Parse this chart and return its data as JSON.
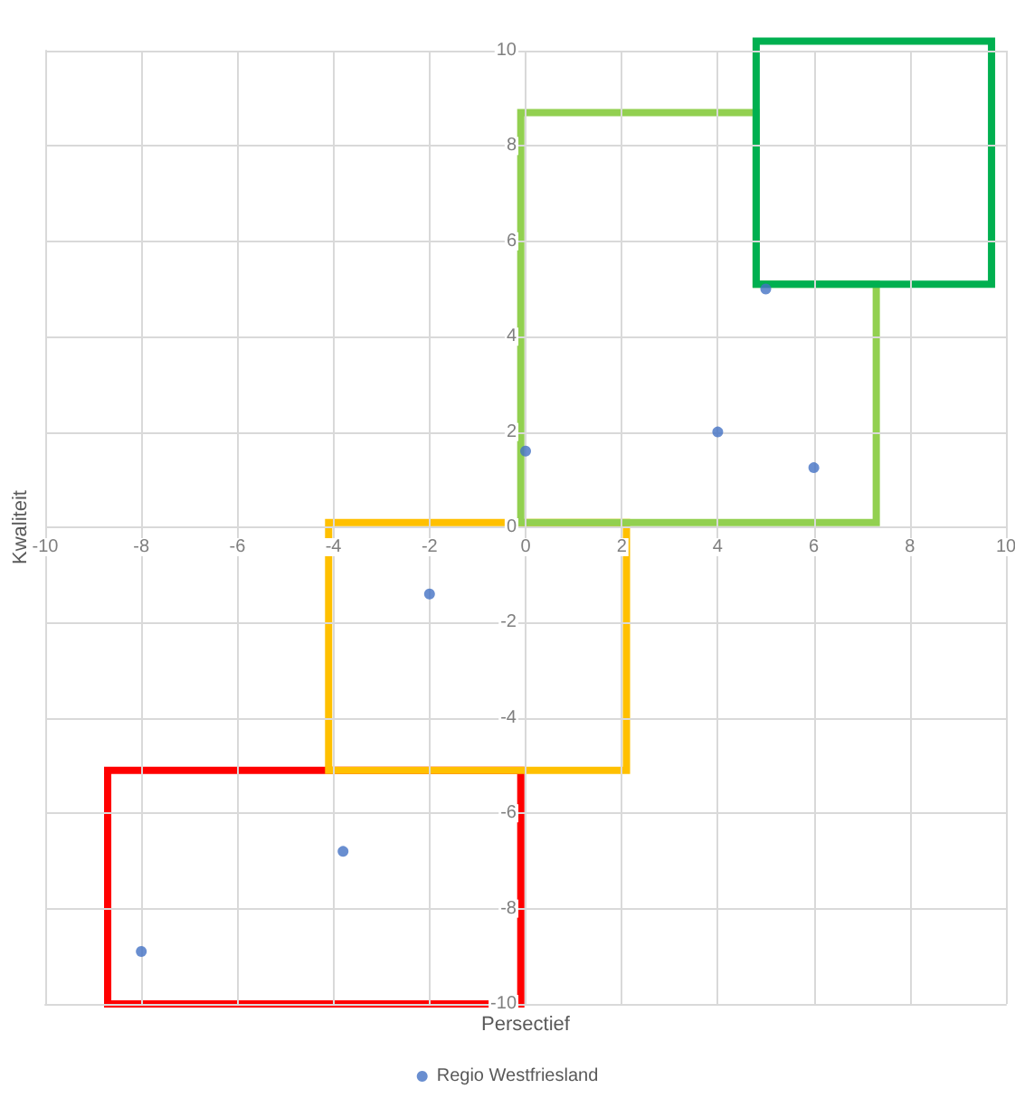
{
  "chart_data": {
    "type": "scatter",
    "xlabel": "Persectief",
    "ylabel": "Kwaliteit",
    "x": [
      -8,
      -3.8,
      -2,
      0,
      4,
      5,
      6
    ],
    "series": [
      {
        "name": "Regio Westfriesland",
        "color": "#4472c4",
        "values": [
          -8.9,
          -6.8,
          -1.4,
          1.6,
          2,
          5,
          1.25
        ]
      }
    ],
    "xlim": [
      -10,
      10
    ],
    "xticks": [
      -10,
      -8,
      -6,
      -4,
      -2,
      0,
      2,
      4,
      6,
      8,
      10
    ],
    "ylim": [
      -10,
      10
    ],
    "yticks": [
      -10,
      -8,
      -6,
      -4,
      -2,
      0,
      2,
      4,
      6,
      8,
      10
    ],
    "grid": true,
    "legend": "bottom",
    "marker": "circle"
  }
}
